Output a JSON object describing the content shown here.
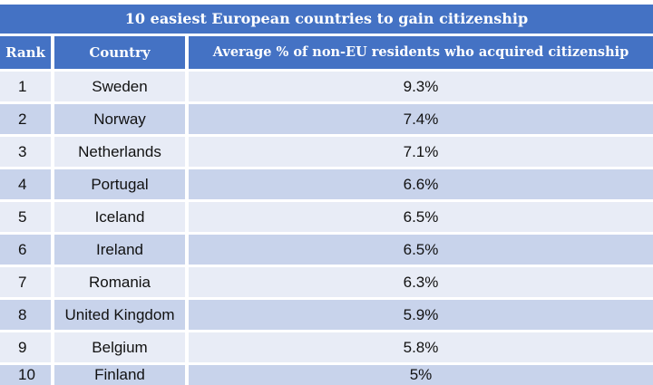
{
  "chart_data": {
    "type": "table",
    "title": "10 easiest European countries to gain citizenship",
    "columns": [
      "Rank",
      "Country",
      "Average % of non-EU residents who acquired citizenship"
    ],
    "rows": [
      {
        "rank": "1",
        "country": "Sweden",
        "value": "9.3%"
      },
      {
        "rank": "2",
        "country": "Norway",
        "value": "7.4%"
      },
      {
        "rank": "3",
        "country": "Netherlands",
        "value": "7.1%"
      },
      {
        "rank": "4",
        "country": "Portugal",
        "value": "6.6%"
      },
      {
        "rank": "5",
        "country": "Iceland",
        "value": "6.5%"
      },
      {
        "rank": "6",
        "country": "Ireland",
        "value": "6.5%"
      },
      {
        "rank": "7",
        "country": "Romania",
        "value": "6.3%"
      },
      {
        "rank": "8",
        "country": "United Kingdom",
        "value": "5.9%"
      },
      {
        "rank": "9",
        "country": "Belgium",
        "value": "5.8%"
      },
      {
        "rank": "10",
        "country": "Finland",
        "value": "5%"
      }
    ]
  },
  "colors": {
    "header": "#4472c4",
    "row_light": "#e8ecf6",
    "row_dark": "#c8d3eb"
  }
}
